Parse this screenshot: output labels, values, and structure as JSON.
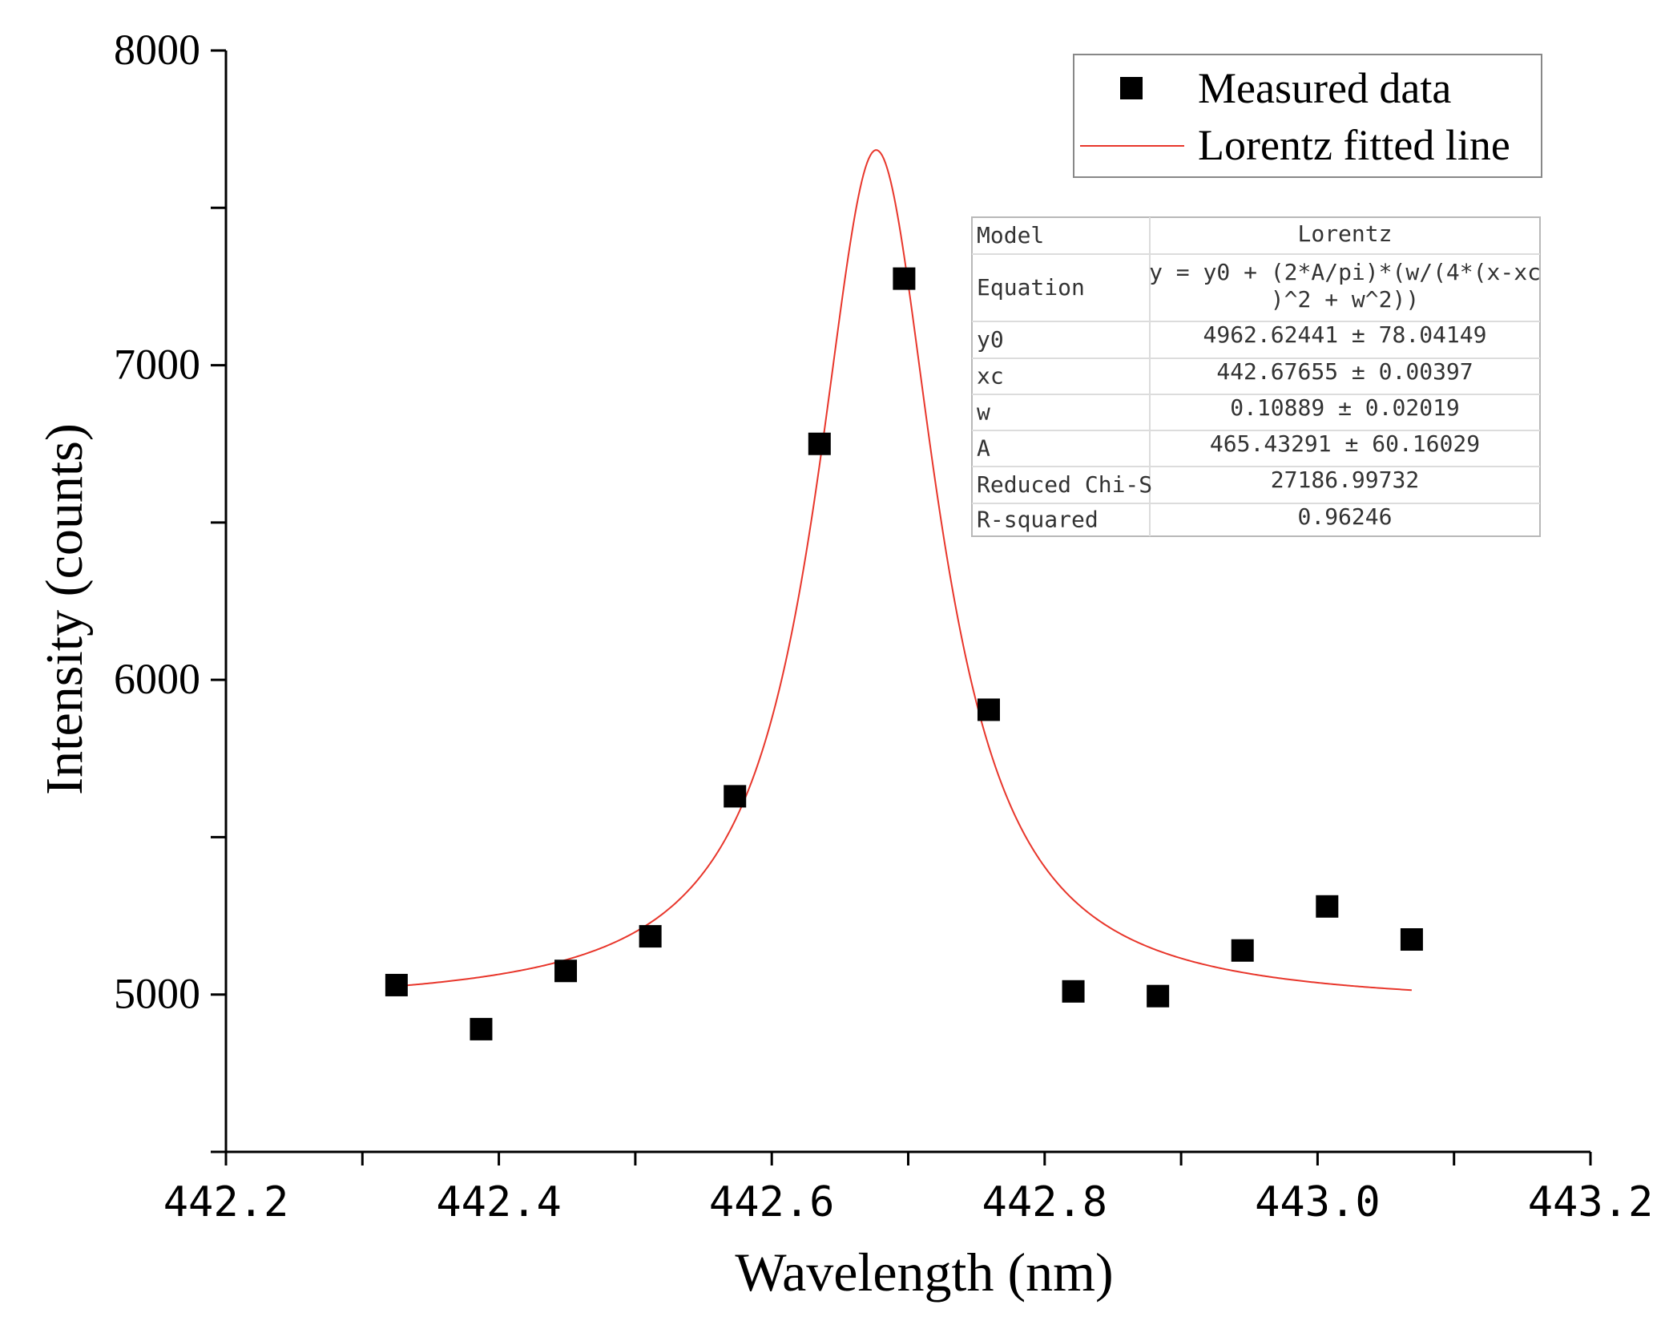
{
  "chart_data": {
    "type": "scatter",
    "title": "",
    "xlabel": "Wavelength (nm)",
    "ylabel": "Intensity (counts)",
    "xlim": [
      442.2,
      443.2
    ],
    "ylim": [
      4500,
      8000
    ],
    "x_ticks": [
      442.2,
      442.3,
      442.4,
      442.5,
      442.6,
      442.7,
      442.8,
      442.9,
      443.0,
      443.1,
      443.2
    ],
    "x_tick_labels": [
      "442.2",
      "",
      "442.4",
      "",
      "442.6",
      "",
      "442.8",
      "",
      "443.0",
      "",
      "443.2"
    ],
    "y_ticks": [
      4500,
      5000,
      5500,
      6000,
      6500,
      7000,
      7500,
      8000
    ],
    "y_tick_labels": [
      "",
      "5000",
      "",
      "6000",
      "",
      "7000",
      "",
      "8000"
    ],
    "grid": false,
    "legend_position": "top-right",
    "series": [
      {
        "name": "Measured data",
        "kind": "scatter",
        "marker": "square",
        "color": "#000000",
        "x": [
          442.325,
          442.387,
          442.449,
          442.511,
          442.573,
          442.635,
          442.697,
          442.759,
          442.821,
          442.883,
          442.945,
          443.007,
          443.069
        ],
        "y": [
          5030,
          4890,
          5075,
          5185,
          5630,
          6750,
          7275,
          5905,
          5010,
          4995,
          5140,
          5280,
          5175
        ]
      },
      {
        "name": "Lorentz fitted line",
        "kind": "line",
        "color": "#e8362b",
        "model": "lorentz",
        "params": {
          "y0": 4962.62441,
          "xc": 442.67655,
          "w": 0.10889,
          "A": 465.43291
        },
        "x_range": [
          442.325,
          443.069
        ]
      }
    ],
    "fit_table": {
      "rows": [
        {
          "key": "Model",
          "value": "Lorentz"
        },
        {
          "key": "Equation",
          "value": "y = y0 + (2*A/pi)*(w/(4*(x-xc",
          "value2": ")^2 + w^2))"
        },
        {
          "key": "y0",
          "value": "4962.62441 ± 78.04149"
        },
        {
          "key": "xc",
          "value": "442.67655 ± 0.00397"
        },
        {
          "key": "w",
          "value": "0.10889 ± 0.02019"
        },
        {
          "key": "A",
          "value": "465.43291 ± 60.16029"
        },
        {
          "key": "Reduced Chi-S",
          "value": "27186.99732"
        },
        {
          "key": "R-squared",
          "value": "0.96246"
        }
      ]
    }
  }
}
